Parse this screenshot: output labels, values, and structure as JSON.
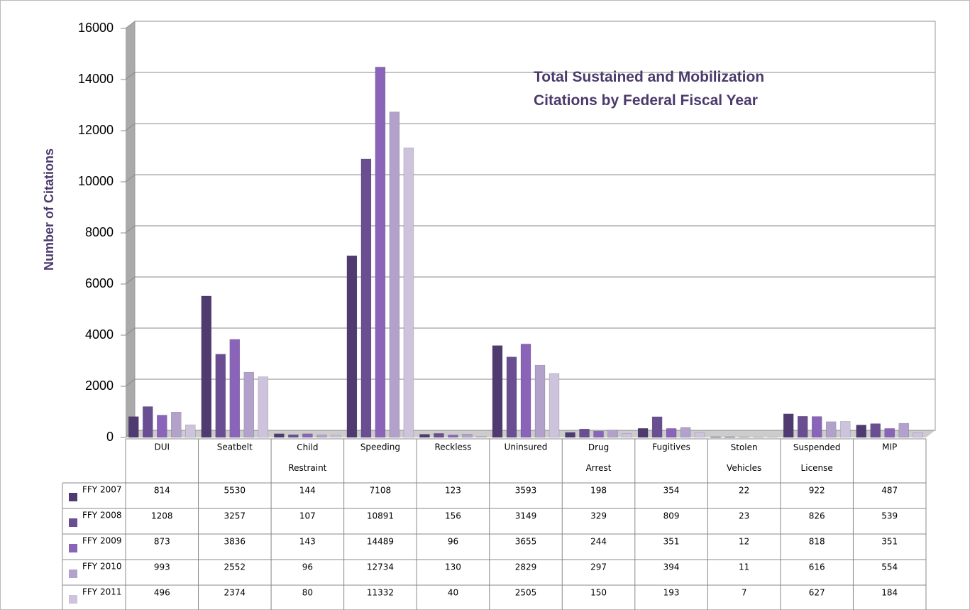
{
  "chart_data": {
    "type": "bar",
    "title": "Total Sustained and Mobilization Citations by Federal Fiscal Year",
    "y_label": "Number of Citations",
    "categories": [
      "DUI",
      "Seatbelt",
      "Child Restraint",
      "Speeding",
      "Reckless",
      "Uninsured",
      "Drug Arrest",
      "Fugitives",
      "Stolen Vehicles",
      "Suspended License",
      "MIP"
    ],
    "series": [
      {
        "name": "FFY 2007",
        "color": "#4f3b70",
        "values": [
          814,
          5530,
          144,
          7108,
          123,
          3593,
          198,
          354,
          22,
          922,
          487
        ]
      },
      {
        "name": "FFY 2008",
        "color": "#6a4e92",
        "values": [
          1208,
          3257,
          107,
          10891,
          156,
          3149,
          329,
          809,
          23,
          826,
          539
        ]
      },
      {
        "name": "FFY 2009",
        "color": "#8a64b8",
        "values": [
          873,
          3836,
          143,
          14489,
          96,
          3655,
          244,
          351,
          12,
          818,
          351
        ]
      },
      {
        "name": "FFY 2010",
        "color": "#b2a1cb",
        "values": [
          993,
          2552,
          96,
          12734,
          130,
          2829,
          297,
          394,
          11,
          616,
          554
        ]
      },
      {
        "name": "FFY 2011",
        "color": "#cdc3dd",
        "values": [
          496,
          2374,
          80,
          11332,
          40,
          2505,
          150,
          193,
          7,
          627,
          184
        ]
      }
    ],
    "ylim": [
      0,
      16000
    ],
    "yticks": [
      0,
      2000,
      4000,
      6000,
      8000,
      10000,
      12000,
      14000,
      16000
    ],
    "grid": true
  }
}
